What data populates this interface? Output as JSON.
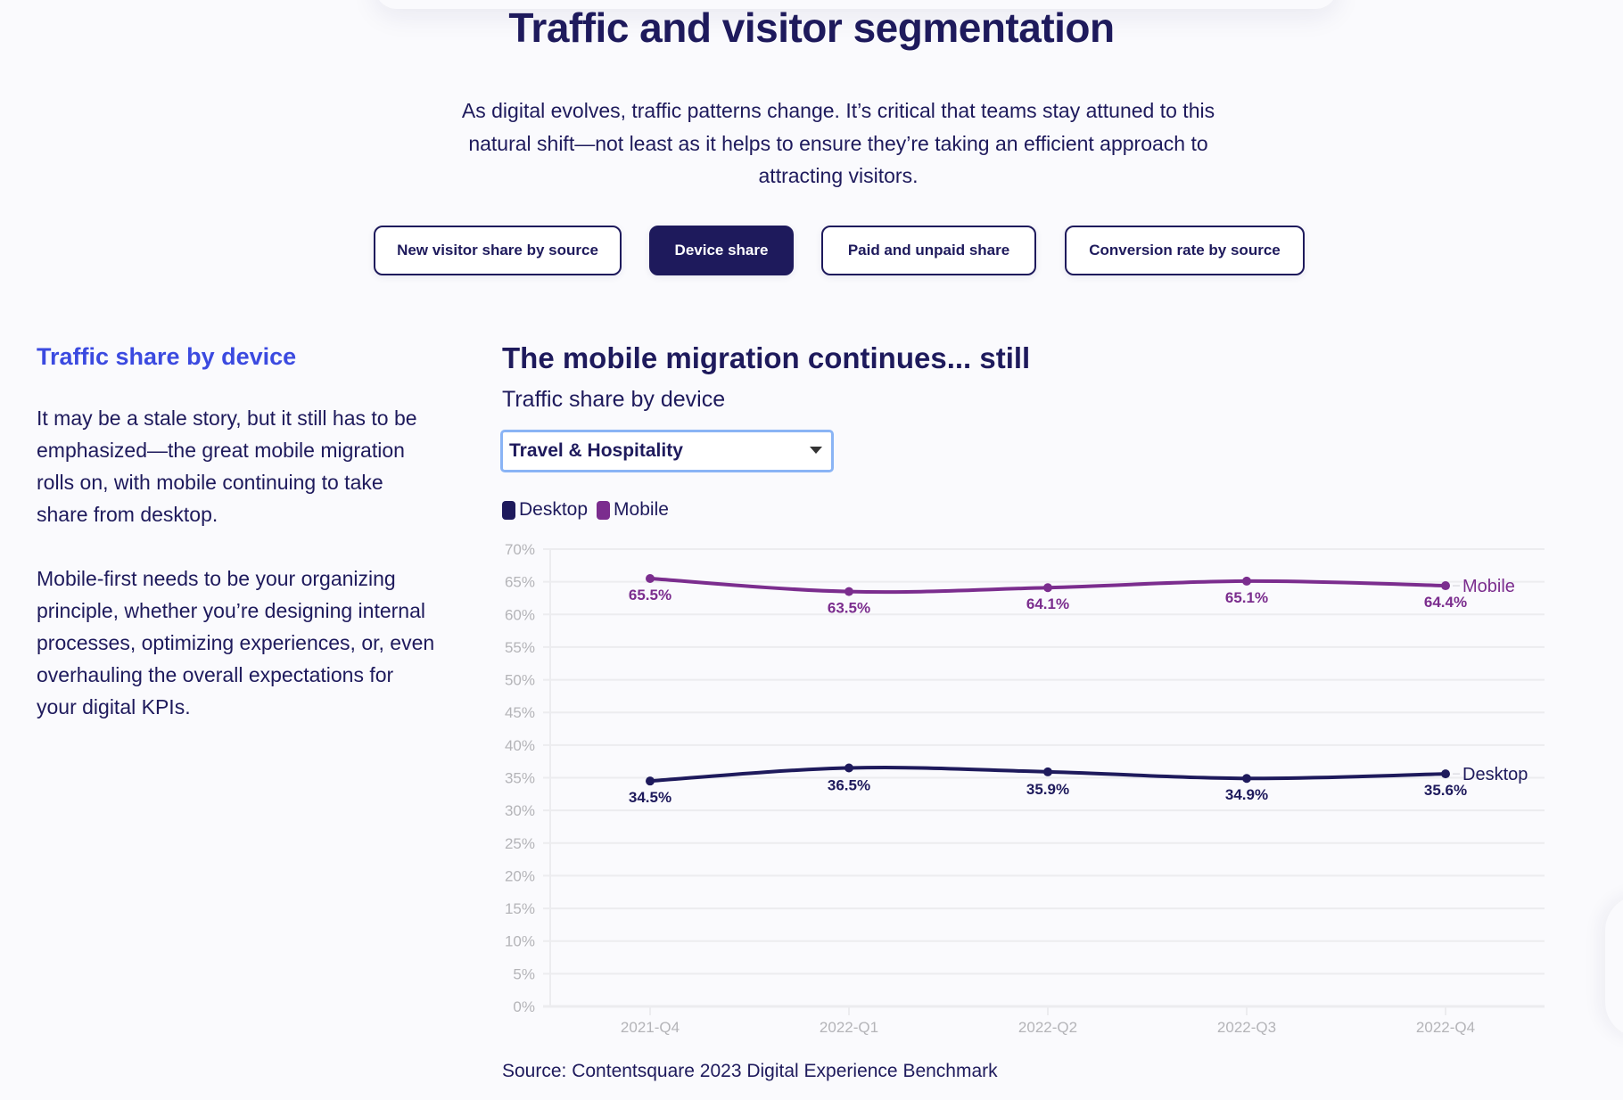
{
  "header": {
    "title": "Traffic and visitor segmentation",
    "intro": "As digital evolves, traffic patterns change. It’s critical that teams stay attuned to this natural shift—not least as it helps to ensure they’re taking an efficient approach to attracting visitors."
  },
  "tabs": [
    {
      "label": "New visitor share by source",
      "active": false
    },
    {
      "label": "Device share",
      "active": true
    },
    {
      "label": "Paid and unpaid share",
      "active": false
    },
    {
      "label": "Conversion rate by source",
      "active": false
    }
  ],
  "sidebar": {
    "heading": "Traffic share by device",
    "paragraphs": [
      "It may be a stale story, but it still has to be emphasized—the great mobile migration rolls on, with mobile continuing to take share from desktop.",
      "Mobile-first needs to be your organizing principle, whether you’re designing internal processes, optimizing experiences, or, even overhauling the overall expectations for your digital KPIs."
    ]
  },
  "chart_panel": {
    "dropdown": {
      "selected": "Travel & Hospitality"
    },
    "source": "Source: Contentsquare 2023 Digital Experience Benchmark"
  },
  "colors": {
    "desktop": "#1e1a5c",
    "mobile": "#7b2d8e",
    "accent_heading": "#3b4ae0",
    "grid": "#ececef",
    "tick": "#b4b4b8"
  },
  "chart_data": {
    "type": "line",
    "title": "The mobile migration continues... still",
    "subtitle": "Traffic share by device",
    "xlabel": "",
    "ylabel": "",
    "x": [
      "2021-Q4",
      "2022-Q1",
      "2022-Q2",
      "2022-Q3",
      "2022-Q4"
    ],
    "ylim": [
      0,
      70
    ],
    "yticks": [
      0,
      5,
      10,
      15,
      20,
      25,
      30,
      35,
      40,
      45,
      50,
      55,
      60,
      65,
      70
    ],
    "ytick_labels": [
      "0%",
      "5%",
      "10%",
      "15%",
      "20%",
      "25%",
      "30%",
      "35%",
      "40%",
      "45%",
      "50%",
      "55%",
      "60%",
      "65%",
      "70%"
    ],
    "grid": true,
    "legend": "top-left",
    "series": [
      {
        "name": "Desktop",
        "values": [
          34.5,
          36.5,
          35.9,
          34.9,
          35.6
        ],
        "labels": [
          "34.5%",
          "36.5%",
          "35.9%",
          "34.9%",
          "35.6%"
        ],
        "color": "#1e1a5c"
      },
      {
        "name": "Mobile",
        "values": [
          65.5,
          63.5,
          64.1,
          65.1,
          64.4
        ],
        "labels": [
          "65.5%",
          "63.5%",
          "64.1%",
          "65.1%",
          "64.4%"
        ],
        "color": "#7b2d8e"
      }
    ]
  }
}
